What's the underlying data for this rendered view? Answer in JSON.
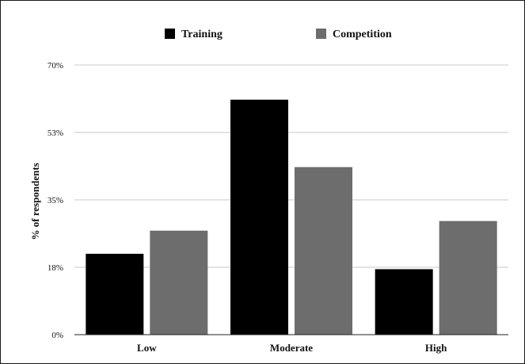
{
  "chart_data": {
    "type": "bar",
    "title": "",
    "xlabel": "",
    "ylabel": "% of respondents",
    "ylim": [
      0,
      70
    ],
    "yticks": [
      {
        "value": 0,
        "label": "0%"
      },
      {
        "value": 17.5,
        "label": "18%"
      },
      {
        "value": 35,
        "label": "35%"
      },
      {
        "value": 52.5,
        "label": "53%"
      },
      {
        "value": 70,
        "label": "70%"
      }
    ],
    "categories": [
      "Low",
      "Moderate",
      "High"
    ],
    "series": [
      {
        "name": "Training",
        "color": "#000000",
        "values": [
          21,
          61,
          17
        ]
      },
      {
        "name": "Competition",
        "color": "#6d6d6d",
        "values": [
          27,
          43.5,
          29.5
        ]
      }
    ],
    "grid": true,
    "legend_position": "top-center"
  }
}
